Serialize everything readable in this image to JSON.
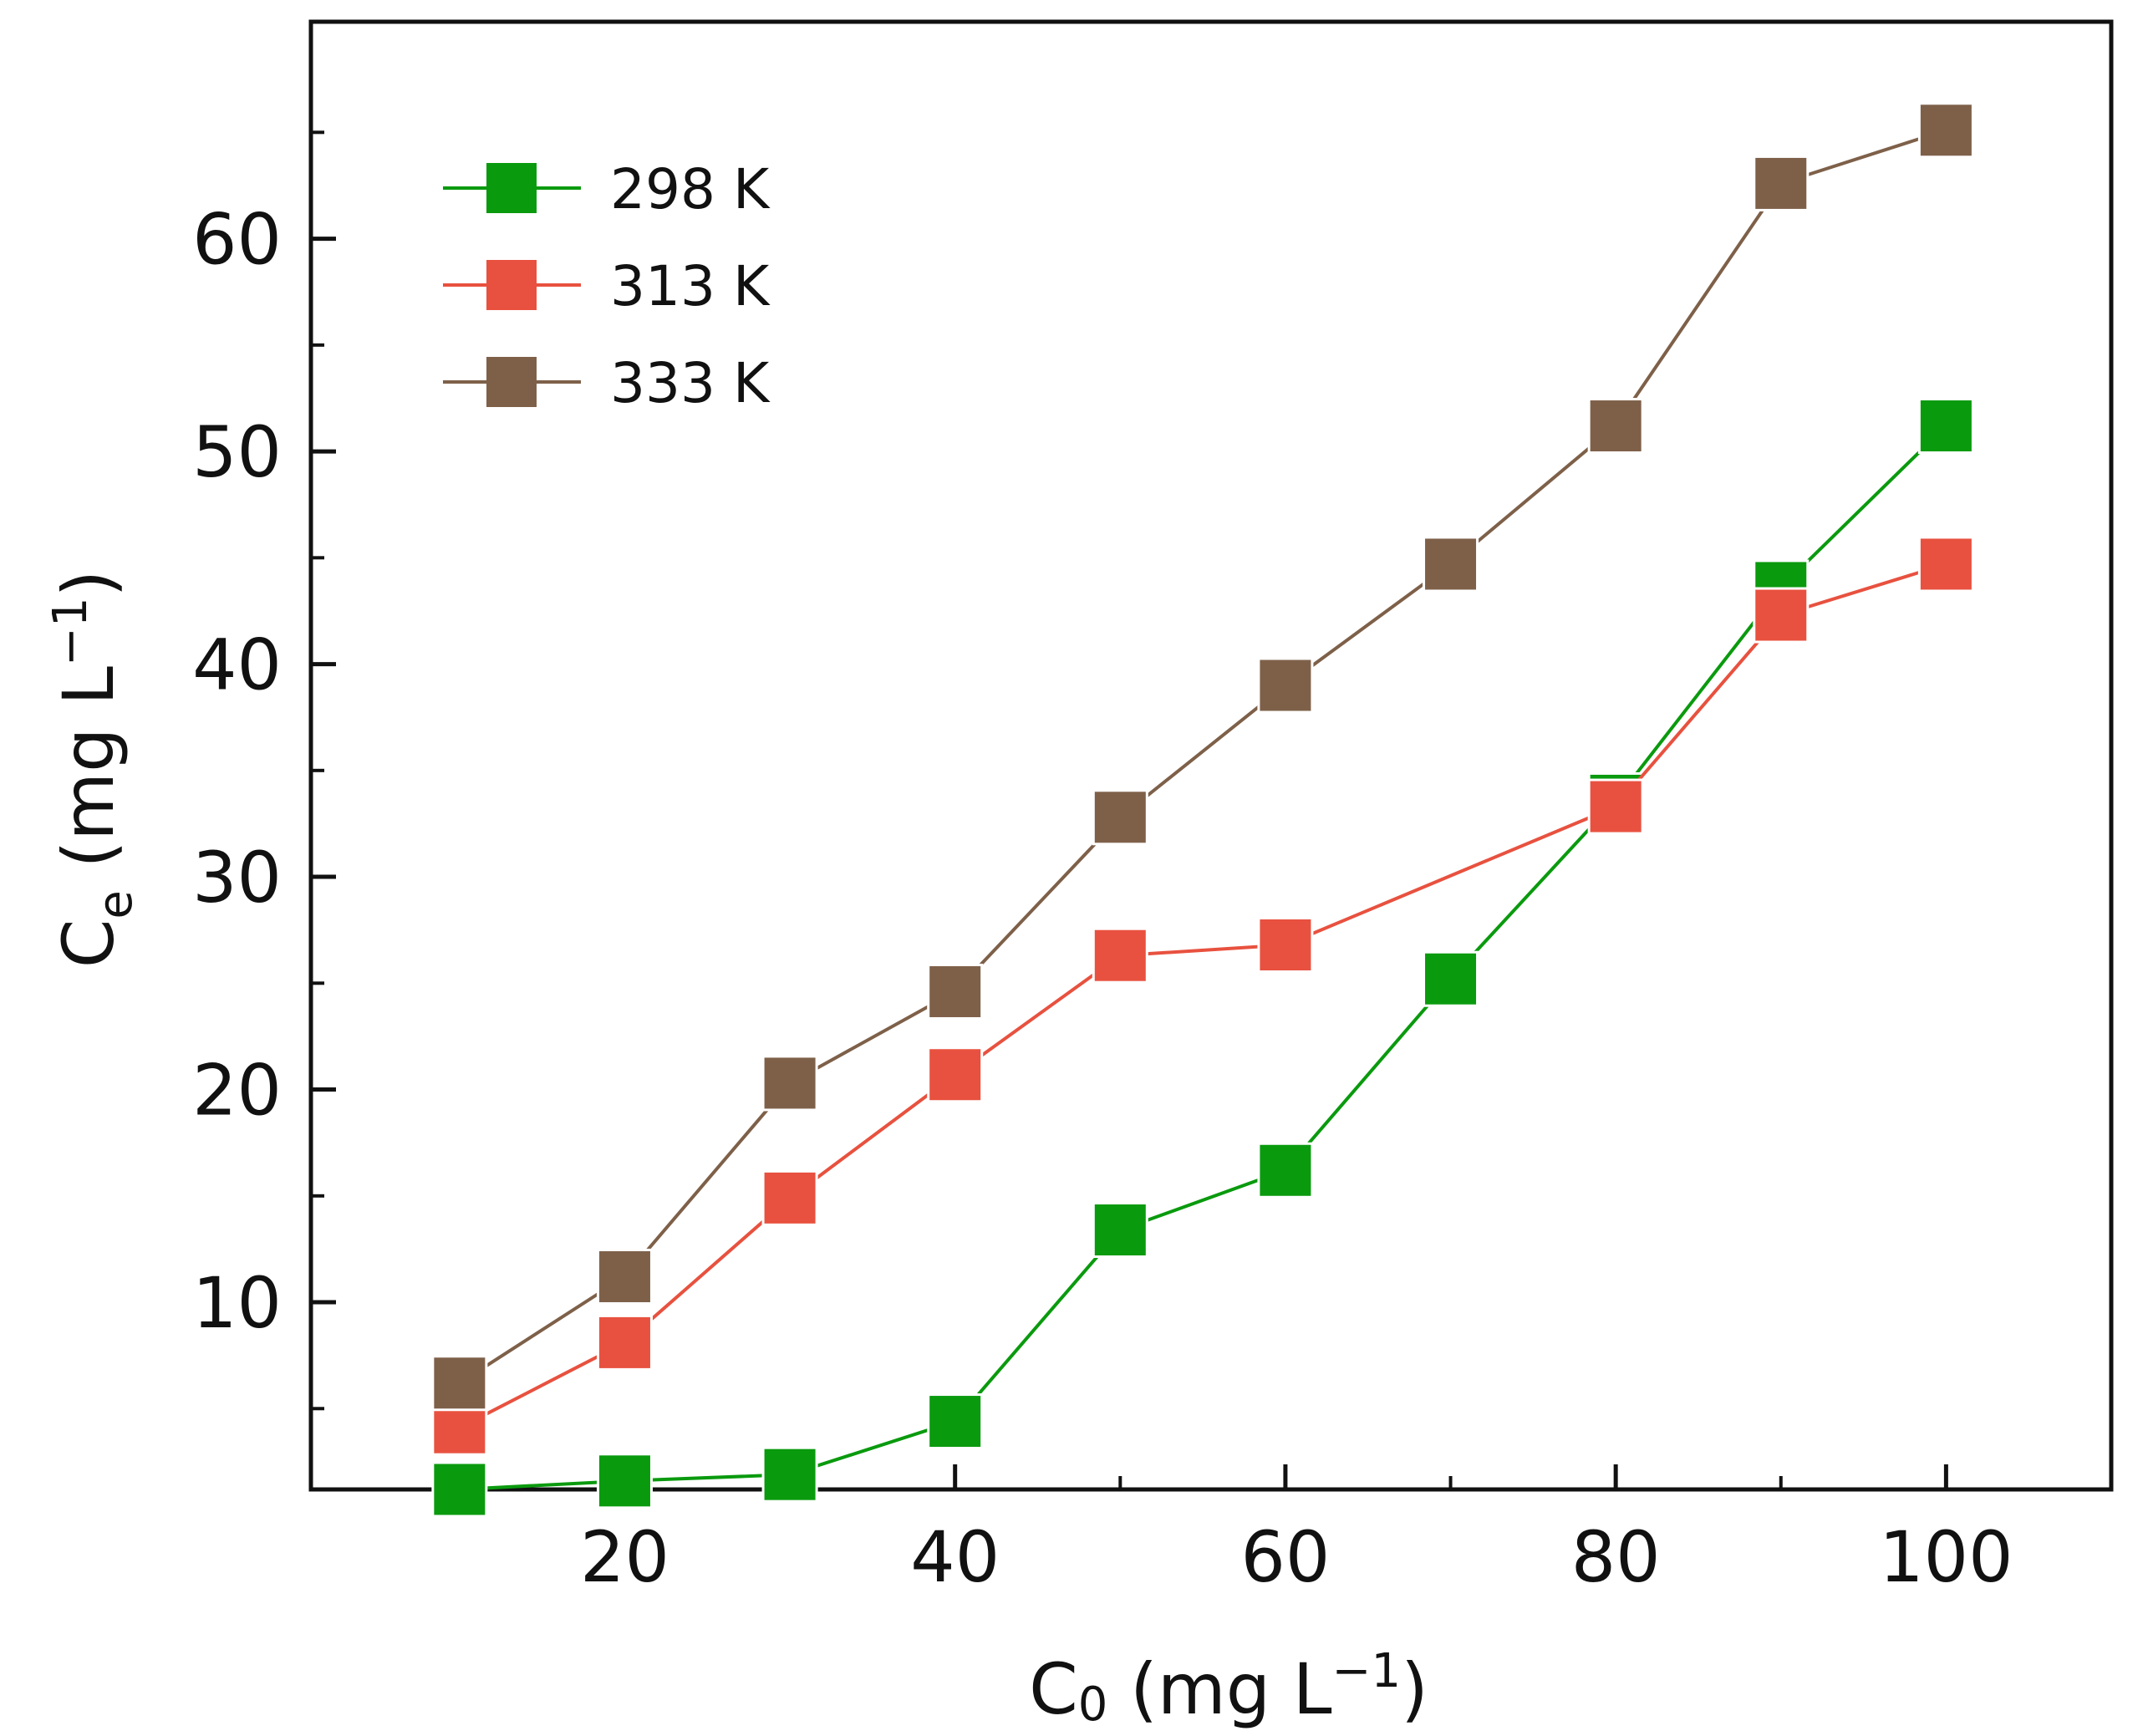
{
  "chart_data": {
    "type": "line",
    "title": "",
    "xlabel": {
      "main": "C",
      "sub": "0",
      "unit": " (mg L",
      "exp": "−1",
      "close": ")"
    },
    "ylabel": {
      "main": "C",
      "sub": "e",
      "unit": " (mg L",
      "exp": "−1",
      "close": ")"
    },
    "xlim": [
      1,
      110
    ],
    "ylim": [
      1.2,
      70.2
    ],
    "x_ticks": [
      20,
      40,
      60,
      80,
      100
    ],
    "x_tick_labels": [
      "20",
      "40",
      "60",
      "80",
      "100"
    ],
    "x_minor_ticks": [
      10,
      30,
      50,
      70,
      90
    ],
    "y_ticks": [
      10,
      20,
      30,
      40,
      50,
      60
    ],
    "y_tick_labels": [
      "10",
      "20",
      "30",
      "40",
      "50",
      "60"
    ],
    "y_minor_ticks": [
      5,
      15,
      25,
      35,
      45,
      55,
      65
    ],
    "grid": false,
    "legend_position": "top-left",
    "marker": "square",
    "x": [
      10,
      20,
      30,
      40,
      50,
      60,
      70,
      80,
      90,
      100
    ],
    "series": [
      {
        "name": "298 K",
        "color": "#0a9a0e",
        "values": [
          1.2,
          1.6,
          1.9,
          4.4,
          13.4,
          16.2,
          25.2,
          33.6,
          43.6,
          51.2
        ]
      },
      {
        "name": "313 K",
        "color": "#e8513f",
        "points": [
          [
            10,
            4.1
          ],
          [
            20,
            8.1
          ],
          [
            30,
            14.9
          ],
          [
            40,
            20.7
          ],
          [
            50,
            26.3
          ],
          [
            60,
            26.8
          ],
          [
            80,
            33.3
          ],
          [
            90,
            42.3
          ],
          [
            100,
            44.7
          ]
        ]
      },
      {
        "name": "333 K",
        "color": "#7e6049",
        "values": [
          6.2,
          11.2,
          20.3,
          24.6,
          32.8,
          39.0,
          44.7,
          51.2,
          62.6,
          65.1
        ]
      }
    ]
  }
}
